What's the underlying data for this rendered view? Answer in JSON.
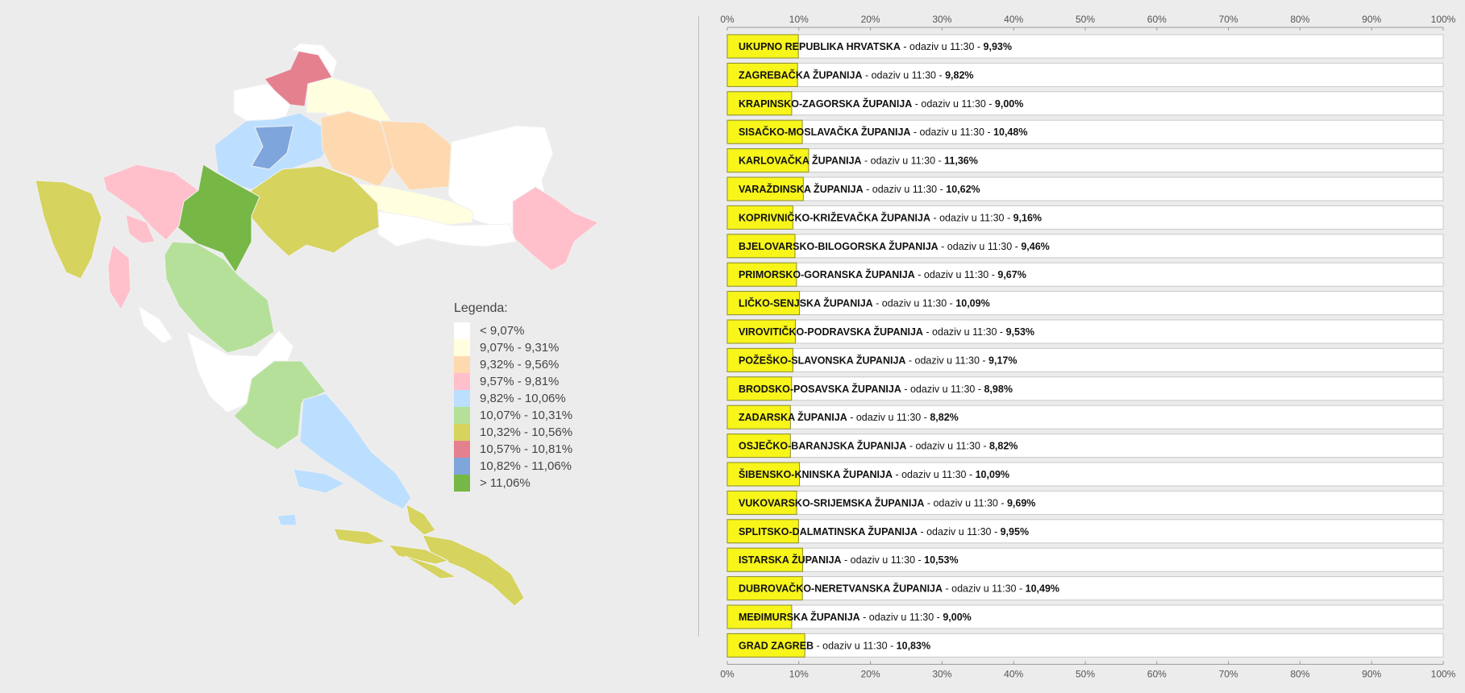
{
  "map": {
    "legend_title": "Legenda:",
    "legend": [
      {
        "label": "< 9,07%",
        "color": "#ffffff"
      },
      {
        "label": "9,07% - 9,31%",
        "color": "#ffffe0"
      },
      {
        "label": "9,32% - 9,56%",
        "color": "#fed9b0"
      },
      {
        "label": "9,57% - 9,81%",
        "color": "#ffc0cb"
      },
      {
        "label": "9,82% - 10,06%",
        "color": "#bddfff"
      },
      {
        "label": "10,07% - 10,31%",
        "color": "#b5e09a"
      },
      {
        "label": "10,32% - 10,56%",
        "color": "#d6d35e"
      },
      {
        "label": "10,57% - 10,81%",
        "color": "#e5808f"
      },
      {
        "label": "10,82% - 11,06%",
        "color": "#7ea6dc"
      },
      {
        "label": "> 11,06%",
        "color": "#77b746"
      }
    ]
  },
  "chart_data": {
    "type": "bar",
    "orientation": "horizontal",
    "x_ticks": [
      "0%",
      "10%",
      "20%",
      "30%",
      "40%",
      "50%",
      "60%",
      "70%",
      "80%",
      "90%",
      "100%"
    ],
    "xlim": [
      0,
      100
    ],
    "label_middle": " - odaziv u 11:30 - ",
    "bar_color": "#f7f51a",
    "categories": [
      "UKUPNO REPUBLIKA HRVATSKA",
      "ZAGREBAČKA ŽUPANIJA",
      "KRAPINSKO-ZAGORSKA ŽUPANIJA",
      "SISAČKO-MOSLAVAČKA ŽUPANIJA",
      "KARLOVAČKA ŽUPANIJA",
      "VARAŽDINSKA ŽUPANIJA",
      "KOPRIVNIČKO-KRIŽEVAČKA ŽUPANIJA",
      "BJELOVARSKO-BILOGORSKA ŽUPANIJA",
      "PRIMORSKO-GORANSKA ŽUPANIJA",
      "LIČKO-SENJSKA ŽUPANIJA",
      "VIROVITIČKO-PODRAVSKA ŽUPANIJA",
      "POŽEŠKO-SLAVONSKA ŽUPANIJA",
      "BRODSKO-POSAVSKA ŽUPANIJA",
      "ZADARSKA ŽUPANIJA",
      "OSJEČKO-BARANJSKA ŽUPANIJA",
      "ŠIBENSKO-KNINSKA ŽUPANIJA",
      "VUKOVARSKO-SRIJEMSKA ŽUPANIJA",
      "SPLITSKO-DALMATINSKA ŽUPANIJA",
      "ISTARSKA ŽUPANIJA",
      "DUBROVAČKO-NERETVANSKA ŽUPANIJA",
      "MEĐIMURSKA ŽUPANIJA",
      "GRAD ZAGREB"
    ],
    "values": [
      9.93,
      9.82,
      9.0,
      10.48,
      11.36,
      10.62,
      9.16,
      9.46,
      9.67,
      10.09,
      9.53,
      9.17,
      8.98,
      8.82,
      8.82,
      10.09,
      9.69,
      9.95,
      10.53,
      10.49,
      9.0,
      10.83
    ],
    "value_labels": [
      "9,93%",
      "9,82%",
      "9,00%",
      "10,48%",
      "11,36%",
      "10,62%",
      "9,16%",
      "9,46%",
      "9,67%",
      "10,09%",
      "9,53%",
      "9,17%",
      "8,98%",
      "8,82%",
      "8,82%",
      "10,09%",
      "9,69%",
      "9,95%",
      "10,53%",
      "10,49%",
      "9,00%",
      "10,83%"
    ]
  }
}
